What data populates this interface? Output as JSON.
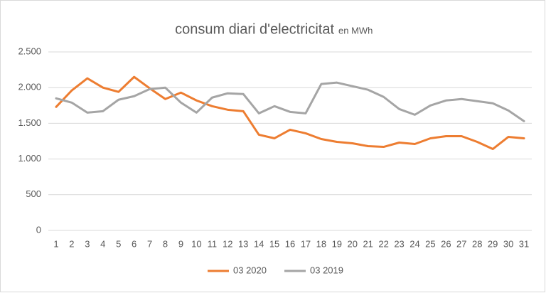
{
  "chart_data": {
    "type": "line",
    "title": "consum diari d'electricitat",
    "subtitle": "en MWh",
    "categories": [
      "1",
      "2",
      "3",
      "4",
      "5",
      "6",
      "7",
      "8",
      "9",
      "10",
      "11",
      "12",
      "13",
      "14",
      "15",
      "16",
      "17",
      "18",
      "19",
      "20",
      "21",
      "22",
      "23",
      "24",
      "25",
      "26",
      "27",
      "28",
      "29",
      "30",
      "31"
    ],
    "series": [
      {
        "name": "03 2020",
        "color": "#ed7d31",
        "values": [
          1730,
          1960,
          2130,
          2000,
          1940,
          2150,
          1990,
          1840,
          1930,
          1820,
          1740,
          1690,
          1670,
          1340,
          1290,
          1410,
          1360,
          1280,
          1240,
          1220,
          1180,
          1170,
          1230,
          1210,
          1290,
          1320,
          1320,
          1240,
          1140,
          1310,
          1290
        ]
      },
      {
        "name": "03 2019",
        "color": "#a5a5a5",
        "values": [
          1850,
          1790,
          1650,
          1670,
          1830,
          1880,
          1980,
          2000,
          1790,
          1650,
          1860,
          1920,
          1910,
          1640,
          1740,
          1660,
          1640,
          2050,
          2070,
          2020,
          1970,
          1870,
          1700,
          1620,
          1750,
          1820,
          1840,
          1810,
          1780,
          1680,
          1530
        ]
      }
    ],
    "ylim": [
      0,
      2500
    ],
    "yticks": [
      0,
      500,
      {
        "value": 1000,
        "label": "1.000"
      },
      {
        "value": 1500,
        "label": "1.500"
      },
      {
        "value": 2000,
        "label": "2.000"
      },
      {
        "value": 2500,
        "label": "2.500"
      }
    ],
    "grid": true,
    "legend": "bottom"
  }
}
